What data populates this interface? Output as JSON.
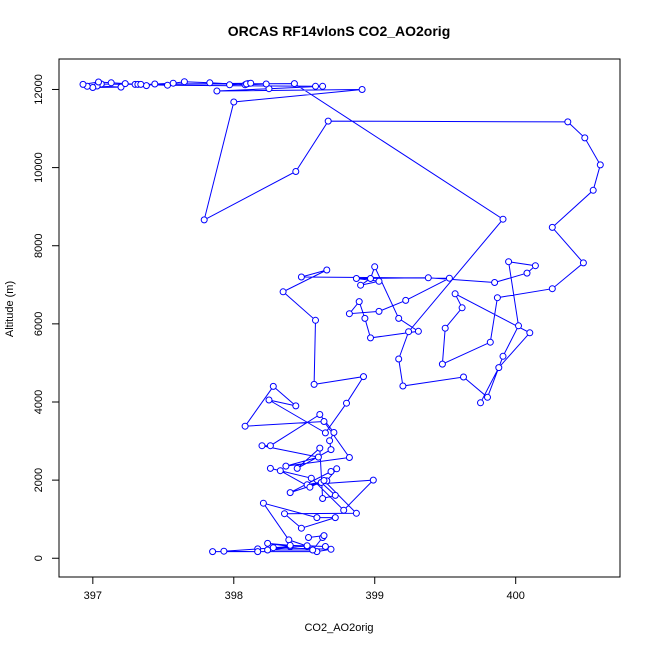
{
  "chart_data": {
    "type": "line",
    "title": "ORCAS RF14vlonS CO2_AO2orig",
    "xlabel": "CO2_AO2orig",
    "ylabel": "Altitude (m)",
    "xlim": [
      396.76,
      400.74
    ],
    "ylim": [
      -480,
      12780
    ],
    "x_ticks": [
      397,
      398,
      399,
      400
    ],
    "y_ticks": [
      0,
      2000,
      4000,
      6000,
      8000,
      10000,
      12000
    ],
    "grid": false,
    "legend": "none",
    "colors": {
      "series": "#0000ff",
      "axis": "#000000",
      "background": "#ffffff"
    },
    "series": [
      {
        "x": [
          399.75,
          399.88,
          400.1,
          399.57,
          399.62,
          399.5,
          399.48,
          399.82,
          399.87,
          400.26,
          400.48,
          400.26,
          400.55,
          400.6,
          400.49,
          400.37,
          398.67,
          398.44,
          397.79,
          398.0,
          398.91,
          397.88,
          398.25,
          398.63,
          398.58,
          397.53,
          397.3,
          397.06,
          397.03,
          397.2,
          397.0,
          396.96,
          396.93,
          397.04,
          397.13,
          397.23,
          397.32,
          397.38,
          397.44,
          397.57,
          397.65,
          397.83,
          398.08,
          398.23,
          398.1,
          397.97,
          398.09,
          398.12,
          397.34,
          398.43,
          399.91,
          399.24,
          399.17,
          399.2,
          399.63,
          399.8,
          399.91,
          400.02,
          399.95,
          400.14,
          400.08,
          399.85,
          399.38,
          398.87,
          399.03,
          398.9,
          398.97,
          399.0,
          399.17,
          399.31,
          398.97,
          398.93,
          398.89,
          398.82,
          399.03,
          399.22,
          399.53,
          398.48,
          398.66,
          398.35,
          398.58,
          398.57,
          398.92,
          398.8,
          398.65,
          398.25,
          398.44,
          398.28,
          398.08,
          398.64,
          398.82,
          398.37,
          398.6,
          398.2,
          398.26,
          398.61,
          398.71,
          398.68,
          398.69,
          398.45,
          398.61,
          398.63,
          398.72,
          398.62,
          398.4,
          398.69,
          398.73,
          398.66,
          398.52,
          398.99,
          398.78,
          398.55,
          398.26,
          398.33,
          398.54,
          398.64,
          398.87,
          398.36,
          398.48,
          398.72,
          398.59,
          398.21,
          398.39,
          398.52,
          398.17,
          397.93,
          398.17,
          397.85,
          398.59,
          398.69,
          398.28,
          398.4,
          398.24,
          398.4,
          398.65,
          398.52,
          398.24,
          398.56,
          398.63,
          398.64,
          398.53
        ],
        "y": [
          3980,
          4880,
          5770,
          6770,
          6410,
          5890,
          4970,
          5530,
          6670,
          6900,
          7560,
          8470,
          9420,
          10070,
          10760,
          11170,
          11190,
          9900,
          8660,
          11680,
          12000,
          11960,
          12020,
          12080,
          12080,
          12110,
          12130,
          12140,
          12090,
          12060,
          12050,
          12080,
          12130,
          12190,
          12170,
          12150,
          12130,
          12100,
          12140,
          12160,
          12200,
          12170,
          12120,
          12140,
          12150,
          12120,
          12140,
          12160,
          12130,
          12150,
          8680,
          5800,
          5100,
          4410,
          4640,
          4120,
          5170,
          5950,
          7590,
          7490,
          7300,
          7060,
          7180,
          7160,
          7090,
          6990,
          7160,
          7460,
          6140,
          5810,
          5640,
          6140,
          6570,
          6260,
          6320,
          6600,
          7170,
          7200,
          7380,
          6820,
          6090,
          4450,
          4650,
          3970,
          3210,
          4050,
          3900,
          4400,
          3380,
          3500,
          2580,
          2360,
          2590,
          2880,
          2880,
          3680,
          3220,
          3010,
          2780,
          2300,
          2820,
          1530,
          1610,
          1940,
          1680,
          2220,
          2290,
          1980,
          1880,
          2000,
          1230,
          2050,
          2300,
          2240,
          1820,
          1990,
          1150,
          1140,
          770,
          1040,
          1040,
          1410,
          470,
          310,
          240,
          180,
          170,
          170,
          170,
          230,
          270,
          300,
          380,
          330,
          300,
          320,
          210,
          210,
          530,
          580,
          530
        ]
      }
    ]
  }
}
